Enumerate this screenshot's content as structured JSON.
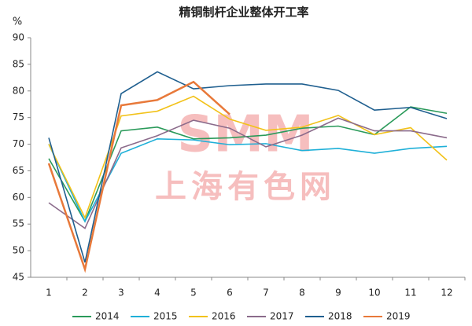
{
  "chart_data": {
    "type": "line",
    "title": "精铜制杆企业整体开工率",
    "y_label": "%",
    "watermark": [
      "SMM",
      "上海有色网"
    ],
    "categories": [
      1,
      2,
      3,
      4,
      5,
      6,
      7,
      8,
      9,
      10,
      11,
      12
    ],
    "ylim": [
      45,
      90
    ],
    "yticks": [
      45,
      50,
      55,
      60,
      65,
      70,
      75,
      80,
      85,
      90
    ],
    "grid": false,
    "legend": "bottom",
    "series": [
      {
        "name": "2014",
        "color": "#2a9a5a",
        "values": [
          67.3,
          55.5,
          72.5,
          73.2,
          71,
          71.2,
          71.7,
          73,
          73.4,
          71.8,
          77,
          75.8
        ]
      },
      {
        "name": "2015",
        "color": "#1fb0d8",
        "values": [
          70,
          55.5,
          68.3,
          71,
          70.8,
          69.9,
          70.1,
          68.8,
          69.2,
          68.3,
          69.2,
          69.6
        ]
      },
      {
        "name": "2016",
        "color": "#f2c21a",
        "values": [
          70,
          56.2,
          75.3,
          76.2,
          79,
          74.7,
          72.6,
          73.2,
          75.4,
          71.8,
          73.1,
          67
        ]
      },
      {
        "name": "2017",
        "color": "#8b6b8b",
        "values": [
          59,
          54.2,
          69.3,
          71.6,
          74.5,
          73,
          69.5,
          71.7,
          74.9,
          72.5,
          72.5,
          71.2
        ]
      },
      {
        "name": "2018",
        "color": "#1f5f8f",
        "values": [
          71.2,
          47.8,
          79.5,
          83.6,
          80.4,
          81,
          81.3,
          81.3,
          80.1,
          76.4,
          76.9,
          74.8
        ]
      },
      {
        "name": "2019",
        "color": "#e8793a",
        "values": [
          66.4,
          46.5,
          77.3,
          78.3,
          81.7,
          75.6,
          null,
          null,
          null,
          null,
          null,
          null
        ]
      }
    ]
  }
}
